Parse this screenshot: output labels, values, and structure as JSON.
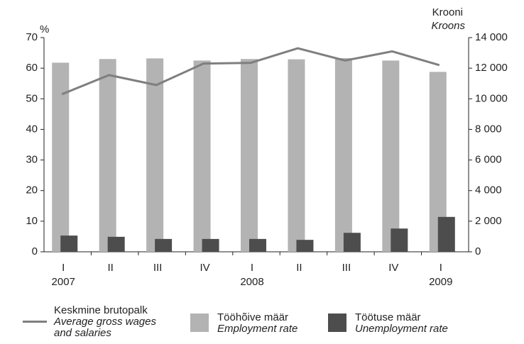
{
  "chart_data": {
    "type": "bar_line",
    "y_axis_title": "%",
    "y2_axis_title": "Krooni",
    "y2_axis_title_en": "Kroons",
    "categories": [
      "I",
      "II",
      "III",
      "IV",
      "I",
      "II",
      "III",
      "IV",
      "I"
    ],
    "category_groups": [
      "2007",
      null,
      null,
      null,
      "2008",
      null,
      null,
      null,
      "2009"
    ],
    "series": [
      {
        "name": "Keskmine brutopalk",
        "name_en": "Average gross wages and salaries",
        "type": "line",
        "axis": "y2",
        "color": "#7f7f7f",
        "values": [
          10300,
          11550,
          10900,
          12300,
          12350,
          13300,
          12500,
          13100,
          12200
        ]
      },
      {
        "name": "Tööhõive määr",
        "name_en": "Employment rate",
        "type": "bar",
        "color": "#b3b3b3",
        "values": [
          61.8,
          63.0,
          63.2,
          62.5,
          63.0,
          62.9,
          63.3,
          62.5,
          58.8
        ]
      },
      {
        "name": "Töötuse määr",
        "name_en": "Unemployment rate",
        "type": "bar",
        "color": "#4d4d4d",
        "values": [
          5.3,
          4.9,
          4.2,
          4.2,
          4.2,
          3.9,
          6.2,
          7.6,
          11.4
        ]
      }
    ],
    "ylim": [
      0,
      70
    ],
    "yticks": [
      0,
      10,
      20,
      30,
      40,
      50,
      60,
      70
    ],
    "y2lim": [
      0,
      14000
    ],
    "y2ticks": [
      0,
      {
        "value": 2000,
        "label": "2 000"
      },
      {
        "value": 4000,
        "label": "4 000"
      },
      {
        "value": 6000,
        "label": "6 000"
      },
      {
        "value": 8000,
        "label": "8 000"
      },
      {
        "value": 10000,
        "label": "10 000"
      },
      {
        "value": 12000,
        "label": "12 000"
      },
      {
        "value": 14000,
        "label": "14 000"
      }
    ],
    "grid": false
  }
}
